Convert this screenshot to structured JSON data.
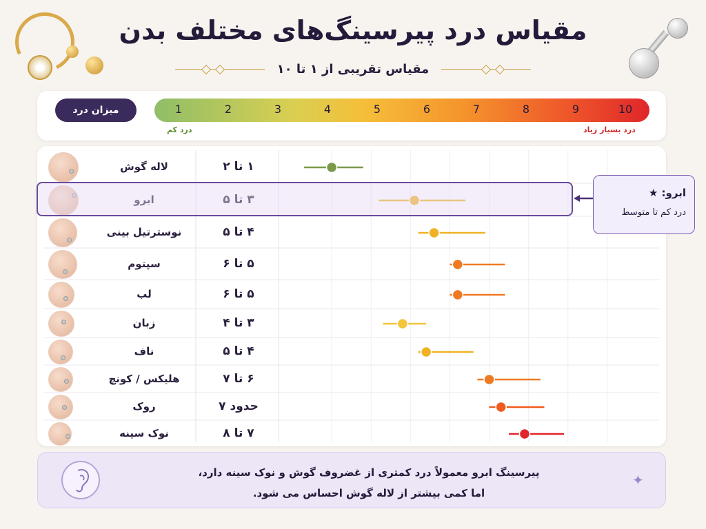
{
  "title": "مقیاس درد پیرسینگ‌های مختلف بدن",
  "subtitle": "مقیاس تقریبی از ۱ تا ۱۰",
  "scale": {
    "label": "میزان درد",
    "numbers": [
      "1",
      "2",
      "3",
      "4",
      "5",
      "6",
      "7",
      "8",
      "9",
      "10"
    ],
    "low_label": "درد کم",
    "high_label": "درد بسیار زیاد"
  },
  "callout": {
    "title": "ابرو: ★",
    "subtitle": "درد کم تا متوسط"
  },
  "footer": {
    "line1": "پیرسینگ ابرو معمولاً درد کمتری از غضروف گوش و نوک سینه دارد،",
    "line2": "اما کمی بیشتر از لاله گوش احساس می شود.",
    "sparkle": "✦"
  },
  "chart_data": {
    "type": "scatter",
    "xlim": [
      1,
      10
    ],
    "highlighted": "ابرو",
    "rows": [
      {
        "part": "لاله گوش",
        "range_label": "۱ تا ۲",
        "min": 1.3,
        "max": 2.8,
        "value": 2.0,
        "color": "#7a9a4a"
      },
      {
        "part": "ابرو",
        "range_label": "۳ تا ۵",
        "min": 3.2,
        "max": 5.4,
        "value": 4.1,
        "color": "#f0b224"
      },
      {
        "part": "نوسترتیل بینی",
        "range_label": "۴ تا ۵",
        "min": 4.2,
        "max": 5.9,
        "value": 4.6,
        "color": "#f0b224"
      },
      {
        "part": "سپتوم",
        "range_label": "۵ تا ۶",
        "min": 5.0,
        "max": 6.4,
        "value": 5.2,
        "color": "#ef7a22"
      },
      {
        "part": "لب",
        "range_label": "۵ تا ۶",
        "min": 5.0,
        "max": 6.4,
        "value": 5.2,
        "color": "#ef7a22"
      },
      {
        "part": "زبان",
        "range_label": "۳ تا ۴",
        "min": 3.3,
        "max": 4.4,
        "value": 3.8,
        "color": "#f3c63b"
      },
      {
        "part": "ناف",
        "range_label": "۴ تا ۵",
        "min": 4.2,
        "max": 5.6,
        "value": 4.4,
        "color": "#f0b224"
      },
      {
        "part": "هلیکس / کونچ",
        "range_label": "۶ تا ۷",
        "min": 5.7,
        "max": 7.3,
        "value": 6.0,
        "color": "#ef7a22"
      },
      {
        "part": "روک",
        "range_label": "حدود ۷",
        "min": 6.0,
        "max": 7.4,
        "value": 6.3,
        "color": "#ef5b1f"
      },
      {
        "part": "نوک سینه",
        "range_label": "۷ تا ۸",
        "min": 6.5,
        "max": 7.9,
        "value": 6.9,
        "color": "#e0262a"
      }
    ]
  }
}
